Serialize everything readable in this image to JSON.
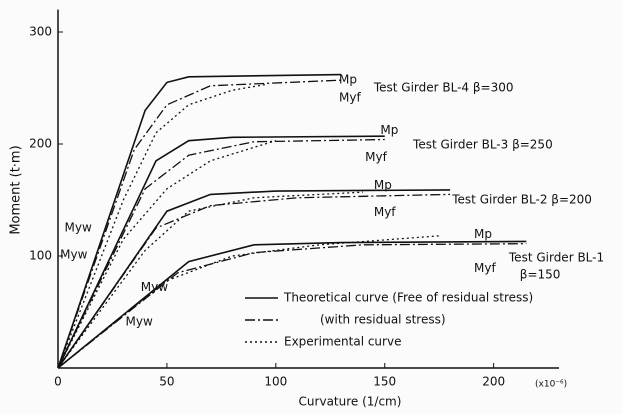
{
  "chart_data": {
    "type": "line",
    "xlabel": "Curvature (1/cm)",
    "ylabel": "Moment (t·m)",
    "xunit": "(x10⁻⁶)",
    "xlim": [
      0,
      230
    ],
    "ylim": [
      0,
      320
    ],
    "xticks": [
      0,
      50,
      100,
      150,
      200
    ],
    "yticks": [
      100,
      200,
      300
    ],
    "color": "#111111",
    "series": [
      {
        "style": "solid",
        "x": [
          0,
          40,
          50,
          60,
          130
        ],
        "values": [
          0,
          230,
          255,
          260,
          262
        ]
      },
      {
        "style": "dashdot",
        "x": [
          0,
          35,
          50,
          70,
          130
        ],
        "values": [
          0,
          195,
          235,
          252,
          257
        ]
      },
      {
        "style": "dotted",
        "x": [
          0,
          30,
          45,
          60,
          80,
          95
        ],
        "values": [
          0,
          150,
          210,
          235,
          248,
          253
        ]
      },
      {
        "style": "solid",
        "x": [
          0,
          45,
          60,
          80,
          150
        ],
        "values": [
          0,
          185,
          203,
          206,
          207
        ]
      },
      {
        "style": "dashdot",
        "x": [
          0,
          40,
          60,
          90,
          150
        ],
        "values": [
          0,
          160,
          190,
          202,
          204
        ]
      },
      {
        "style": "dotted",
        "x": [
          0,
          30,
          50,
          70,
          100
        ],
        "values": [
          0,
          115,
          160,
          185,
          203
        ]
      },
      {
        "style": "solid",
        "x": [
          0,
          50,
          70,
          100,
          180
        ],
        "values": [
          0,
          140,
          155,
          158,
          159
        ]
      },
      {
        "style": "dashdot",
        "x": [
          0,
          45,
          70,
          110,
          180
        ],
        "values": [
          0,
          125,
          145,
          152,
          155
        ]
      },
      {
        "style": "dotted",
        "x": [
          0,
          40,
          60,
          90,
          140
        ],
        "values": [
          0,
          105,
          140,
          152,
          157
        ]
      },
      {
        "style": "solid",
        "x": [
          0,
          60,
          90,
          130,
          215
        ],
        "values": [
          0,
          95,
          110,
          112,
          113
        ]
      },
      {
        "style": "dashdot",
        "x": [
          0,
          55,
          90,
          140,
          215
        ],
        "values": [
          0,
          85,
          103,
          110,
          111
        ]
      },
      {
        "style": "dotted",
        "x": [
          0,
          50,
          80,
          120,
          175
        ],
        "values": [
          0,
          78,
          100,
          110,
          118
        ]
      }
    ],
    "legend": [
      {
        "style": "solid",
        "label": "Theoretical curve (Free of residual stress)"
      },
      {
        "style": "dashdot",
        "label": "(with residual stress)"
      },
      {
        "style": "dotted",
        "label": "Experimental curve"
      }
    ],
    "annotations": [
      {
        "text": "Mp",
        "x": 129,
        "y": 257
      },
      {
        "text": "Myf",
        "x": 129,
        "y": 241
      },
      {
        "text": "Test Girder BL-4 β=300",
        "x": 145,
        "y": 250
      },
      {
        "text": "Mp",
        "x": 148,
        "y": 212
      },
      {
        "text": "Myf",
        "x": 141,
        "y": 188
      },
      {
        "text": "Test Girder BL-3 β=250",
        "x": 163,
        "y": 199
      },
      {
        "text": "Mp",
        "x": 145,
        "y": 163
      },
      {
        "text": "Myf",
        "x": 145,
        "y": 139
      },
      {
        "text": "Test Girder BL-2 β=200",
        "x": 181,
        "y": 150
      },
      {
        "text": "Mp",
        "x": 191,
        "y": 119
      },
      {
        "text": "Myf",
        "x": 191,
        "y": 89
      },
      {
        "text": "Test Girder BL-1",
        "x": 207,
        "y": 98
      },
      {
        "text": "β=150",
        "x": 212,
        "y": 83
      },
      {
        "text": "Myw",
        "x": 3,
        "y": 125
      },
      {
        "text": "Myw",
        "x": 1,
        "y": 101
      },
      {
        "text": "Myw",
        "x": 38,
        "y": 72
      },
      {
        "text": "Myw",
        "x": 31,
        "y": 41
      }
    ]
  }
}
